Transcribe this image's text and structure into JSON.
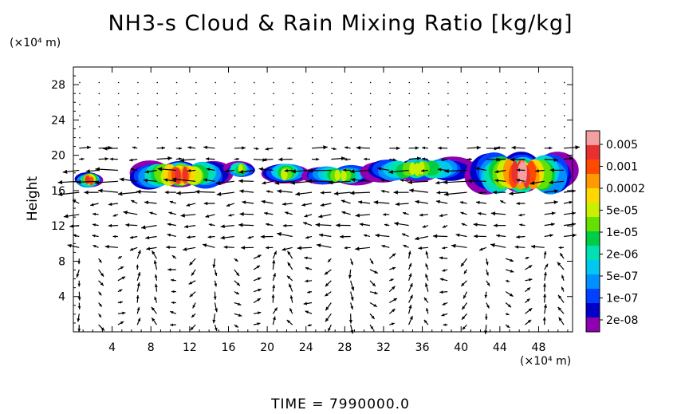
{
  "chart_data": {
    "type": "heatmap",
    "title": "NH3-s Cloud & Rain Mixing Ratio [kg/kg]",
    "ylabel": "Height",
    "y_unit": "(×10⁴ m)",
    "x_unit": "(×10⁴ m)",
    "xlim": [
      0,
      51.5
    ],
    "ylim": [
      0,
      30
    ],
    "x_ticks": [
      4,
      8,
      12,
      16,
      20,
      24,
      28,
      32,
      36,
      40,
      44,
      48
    ],
    "y_ticks": [
      4,
      8,
      12,
      16,
      20,
      24,
      28
    ],
    "colorbar": {
      "labels": [
        "0.005",
        "0.001",
        "0.0002",
        "5e-05",
        "1e-05",
        "2e-06",
        "5e-07",
        "1e-07",
        "2e-08"
      ],
      "colors": [
        "#f4a0a0",
        "#e83030",
        "#ff4a00",
        "#ff9a00",
        "#ffd800",
        "#c8f000",
        "#66e000",
        "#00cc44",
        "#00e0b0",
        "#00c8f0",
        "#0090ff",
        "#0040ff",
        "#0000c8",
        "#9000b0"
      ]
    },
    "cloud_regions": [
      {
        "x": [
          0.5,
          2.8
        ],
        "y": [
          16.4,
          18.0
        ],
        "peak": 0.0002
      },
      {
        "x": [
          6.0,
          16.0
        ],
        "y": [
          16.4,
          19.2
        ],
        "peak": 0.0002
      },
      {
        "x": [
          16.0,
          18.5
        ],
        "y": [
          17.6,
          19.2
        ],
        "peak": 1e-05
      },
      {
        "x": [
          20.0,
          24.0
        ],
        "y": [
          16.8,
          19.0
        ],
        "peak": 1e-05
      },
      {
        "x": [
          24.0,
          31.0
        ],
        "y": [
          16.8,
          18.8
        ],
        "peak": 1e-05
      },
      {
        "x": [
          30.0,
          41.0
        ],
        "y": [
          17.2,
          19.6
        ],
        "peak": 1e-05
      },
      {
        "x": [
          41.0,
          51.5
        ],
        "y": [
          15.8,
          20.0
        ],
        "peak": 0.001
      }
    ]
  },
  "footer": {
    "time_label": "TIME  =  7990000.0"
  }
}
